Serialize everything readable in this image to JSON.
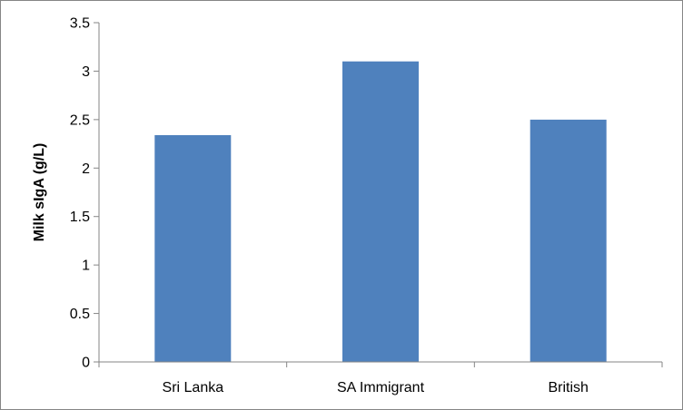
{
  "chart_data": {
    "type": "bar",
    "title": "",
    "xlabel": "",
    "ylabel": "Milk sIgA  (g/L)",
    "categories": [
      "Sri Lanka",
      "SA Immigrant",
      "British"
    ],
    "values": [
      2.34,
      3.1,
      2.5
    ],
    "ylim": [
      0,
      3.5
    ],
    "yticks": [
      0,
      0.5,
      1,
      1.5,
      2,
      2.5,
      3,
      3.5
    ],
    "ytick_labels": [
      "0",
      "0.5",
      "1",
      "1.5",
      "2",
      "2.5",
      "3",
      "3.5"
    ],
    "grid": false,
    "legend": "none",
    "bar_color": "#4F81BD",
    "axis_color": "#868686"
  }
}
